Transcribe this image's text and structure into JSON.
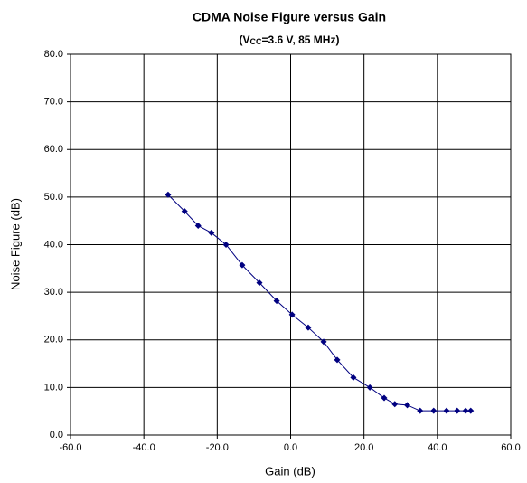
{
  "chart_data": {
    "type": "line",
    "title": "CDMA Noise Figure versus Gain",
    "subtitle": [
      "(V",
      "CC",
      "=3.6 V, 85 MHz)"
    ],
    "x_label": "Gain (dB)",
    "y_label": "Noise Figure (dB)",
    "series": [
      {
        "name": "Noise Figure",
        "color": "#000080",
        "x": [
          -33.4,
          -28.9,
          -25.2,
          -21.6,
          -17.6,
          -13.2,
          -8.5,
          -3.8,
          0.4,
          4.8,
          9.0,
          12.7,
          17.1,
          21.6,
          25.5,
          28.4,
          31.8,
          35.3,
          39.0,
          42.5,
          45.4,
          47.7,
          49.1
        ],
        "values": [
          50.5,
          47.0,
          44.0,
          42.5,
          40.0,
          35.7,
          32.0,
          28.2,
          25.3,
          22.6,
          19.6,
          15.8,
          12.1,
          10.0,
          7.8,
          6.5,
          6.3,
          5.1,
          5.1,
          5.1,
          5.1,
          5.1,
          5.1
        ]
      }
    ],
    "xlim": [
      -60,
      60
    ],
    "xticks": [
      {
        "value": -60,
        "label": "-60.0"
      },
      {
        "value": -40,
        "label": "-40.0"
      },
      {
        "value": -20,
        "label": "-20.0"
      },
      {
        "value": 0,
        "label": "0.0"
      },
      {
        "value": 20,
        "label": "20.0"
      },
      {
        "value": 40,
        "label": "40.0"
      },
      {
        "value": 60,
        "label": "60.0"
      }
    ],
    "ylim": [
      0,
      80
    ],
    "yticks": [
      {
        "value": 0,
        "label": "0.0"
      },
      {
        "value": 10,
        "label": "10.0"
      },
      {
        "value": 20,
        "label": "20.0"
      },
      {
        "value": 30,
        "label": "30.0"
      },
      {
        "value": 40,
        "label": "40.0"
      },
      {
        "value": 50,
        "label": "50.0"
      },
      {
        "value": 60,
        "label": "60.0"
      },
      {
        "value": 70,
        "label": "70.0"
      },
      {
        "value": 80,
        "label": "80.0"
      }
    ],
    "grid": true
  }
}
